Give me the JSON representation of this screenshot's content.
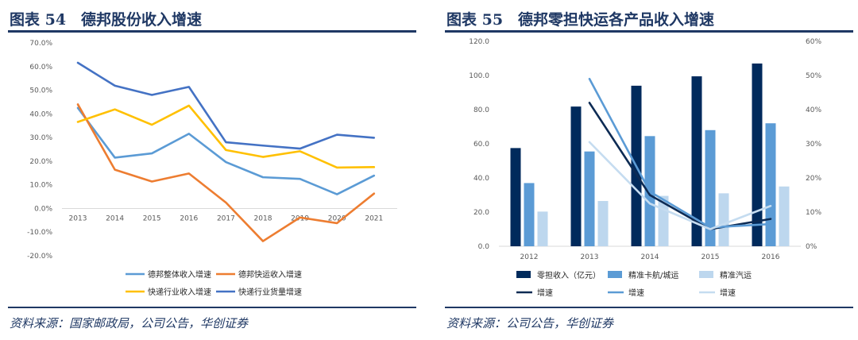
{
  "left": {
    "figure_title": "图表 54　德邦股份收入增速",
    "source": "资料来源：国家邮政局，公司公告，华创证券",
    "chart_data": {
      "type": "line",
      "title": "德邦股份收入增速",
      "categories": [
        "2013",
        "2014",
        "2015",
        "2016",
        "2017",
        "2018",
        "2019",
        "2020",
        "2021"
      ],
      "ylim": [
        -20,
        70
      ],
      "yticks": [
        -20,
        -10,
        0,
        10,
        20,
        30,
        40,
        50,
        60,
        70
      ],
      "ytick_labels": [
        "-20.0%",
        "-10.0%",
        "0.0%",
        "10.0%",
        "20.0%",
        "30.0%",
        "40.0%",
        "50.0%",
        "60.0%",
        "70.0%"
      ],
      "series": [
        {
          "name": "德邦整体收入增速",
          "color": "#5b9bd5",
          "values": [
            42.5,
            21.5,
            23.3,
            31.6,
            19.6,
            13.2,
            12.5,
            6.0,
            13.9
          ]
        },
        {
          "name": "德邦快运收入增速",
          "color": "#ed7d31",
          "values": [
            44.0,
            16.4,
            11.4,
            14.8,
            2.5,
            -13.8,
            -3.8,
            -6.2,
            6.3
          ]
        },
        {
          "name": "快递行业收入增速",
          "color": "#ffc000",
          "values": [
            36.6,
            41.9,
            35.4,
            43.5,
            24.7,
            21.8,
            24.2,
            17.3,
            17.5
          ]
        },
        {
          "name": "快递行业货量增速",
          "color": "#4472c4",
          "values": [
            61.6,
            51.9,
            48.0,
            51.4,
            28.0,
            26.6,
            25.3,
            31.2,
            29.9
          ]
        }
      ]
    }
  },
  "right": {
    "figure_title": "图表 55　德邦零担快运各产品收入增速",
    "source": "资料来源：公司公告，华创证券",
    "chart_data": {
      "type": "bar",
      "title": "德邦零担快运各产品收入增速",
      "categories": [
        "2012",
        "2013",
        "2014",
        "2015",
        "2016"
      ],
      "ylim_left": [
        0,
        120
      ],
      "yticks_left": [
        0,
        20,
        40,
        60,
        80,
        100,
        120
      ],
      "ytick_labels_left": [
        "0.0",
        "20.0",
        "40.0",
        "60.0",
        "80.0",
        "100.0",
        "120.0"
      ],
      "ylim_right": [
        0,
        60
      ],
      "yticks_right": [
        0,
        10,
        20,
        30,
        40,
        50,
        60
      ],
      "ytick_labels_right": [
        "0%",
        "10%",
        "20%",
        "30%",
        "40%",
        "50%",
        "60%"
      ],
      "bar_series": [
        {
          "name": "零担收入（亿元）",
          "color": "#002a5c",
          "values": [
            57.5,
            81.8,
            94.0,
            99.5,
            107.0
          ]
        },
        {
          "name": "精准卡航/城运",
          "color": "#5b9bd5",
          "values": [
            37.0,
            55.5,
            64.5,
            68.0,
            72.0
          ]
        },
        {
          "name": "精准汽运",
          "color": "#bdd7ee",
          "values": [
            20.3,
            26.5,
            29.5,
            31.0,
            35.0
          ]
        }
      ],
      "line_series": [
        {
          "name": "增速",
          "color": "#0d2b54",
          "axis": "right",
          "values": [
            null,
            42.0,
            15.0,
            5.0,
            8.0
          ]
        },
        {
          "name": "增速",
          "color": "#5b9bd5",
          "axis": "right",
          "values": [
            null,
            49.0,
            16.0,
            5.5,
            6.5
          ]
        },
        {
          "name": "增速",
          "color": "#c5dcf0",
          "axis": "right",
          "values": [
            null,
            30.5,
            12.5,
            5.0,
            11.8
          ]
        }
      ],
      "legend": [
        {
          "label": "零担收入（亿元）",
          "kind": "bar",
          "color": "#002a5c"
        },
        {
          "label": "精准卡航/城运",
          "kind": "bar",
          "color": "#5b9bd5"
        },
        {
          "label": "精准汽运",
          "kind": "bar",
          "color": "#bdd7ee"
        },
        {
          "label": "增速",
          "kind": "line",
          "color": "#0d2b54"
        },
        {
          "label": "增速",
          "kind": "line",
          "color": "#5b9bd5"
        },
        {
          "label": "增速",
          "kind": "line",
          "color": "#c5dcf0"
        }
      ]
    }
  }
}
